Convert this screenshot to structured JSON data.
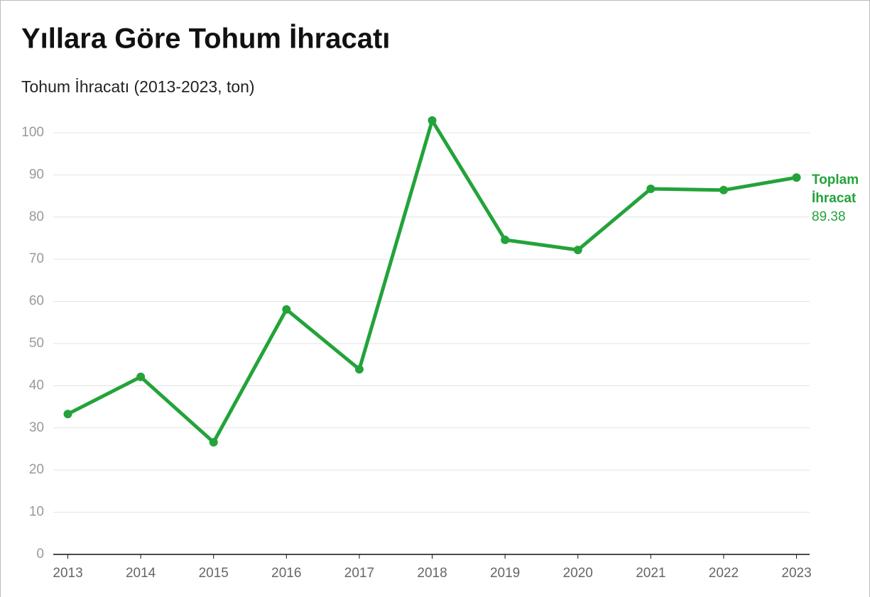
{
  "chart_data": {
    "type": "line",
    "title": "Yıllara Göre Tohum İhracatı",
    "subtitle": "Tohum İhracatı (2013-2023, ton)",
    "x": [
      2013,
      2014,
      2015,
      2016,
      2017,
      2018,
      2019,
      2020,
      2021,
      2022,
      2023
    ],
    "series": [
      {
        "name": "Toplam İhracat",
        "color": "#23a33a",
        "values": [
          33.3,
          42.1,
          26.6,
          58.1,
          43.9,
          102.9,
          74.6,
          72.2,
          86.7,
          86.4,
          89.38
        ]
      }
    ],
    "xlim": [
      2012.8,
      2023.18
    ],
    "xticks": [
      2013,
      2014,
      2015,
      2016,
      2017,
      2018,
      2019,
      2020,
      2021,
      2022,
      2023
    ],
    "ylim": [
      0,
      100
    ],
    "yticks": [
      0,
      10,
      20,
      30,
      40,
      50,
      60,
      70,
      80,
      90,
      100
    ],
    "grid": true
  }
}
